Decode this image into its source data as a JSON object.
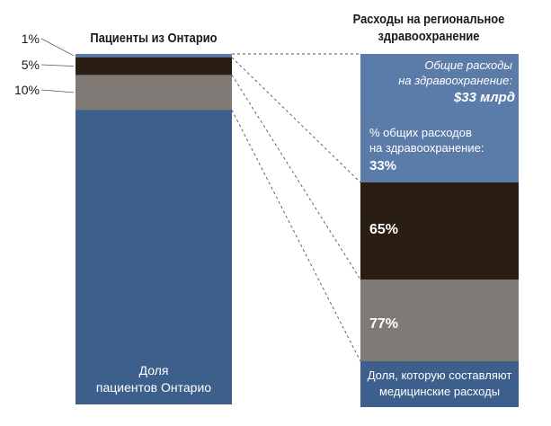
{
  "left_title": "Пациенты из Онтарио",
  "right_title": "Расходы на региональное\nздравоохранение",
  "left_bar_label": "Доля\nпациентов Онтарио",
  "right_bottom_label": "Доля, которую составляют\nмедицинские расходы",
  "total_spending_label": "Общие расходы\nна здравоохранение:",
  "total_spending_value": "$33 млрд",
  "share_label": "% общих расходов\nна здравоохранение:",
  "colors": {
    "blue": "#3c5f8c",
    "blue_light": "#5b7ba8",
    "dark": "#2a1d12",
    "gray": "#7f7a76",
    "line": "#555555"
  },
  "chart_data": {
    "type": "stacked-bar",
    "left": {
      "segments": [
        {
          "label": "1%",
          "value": 1
        },
        {
          "label": "5%",
          "value": 5
        },
        {
          "label": "10%",
          "value": 10
        }
      ]
    },
    "right": {
      "segments": [
        {
          "label": "33%",
          "value": 33
        },
        {
          "label": "65%",
          "value": 65
        },
        {
          "label": "77%",
          "value": 77
        }
      ]
    }
  }
}
